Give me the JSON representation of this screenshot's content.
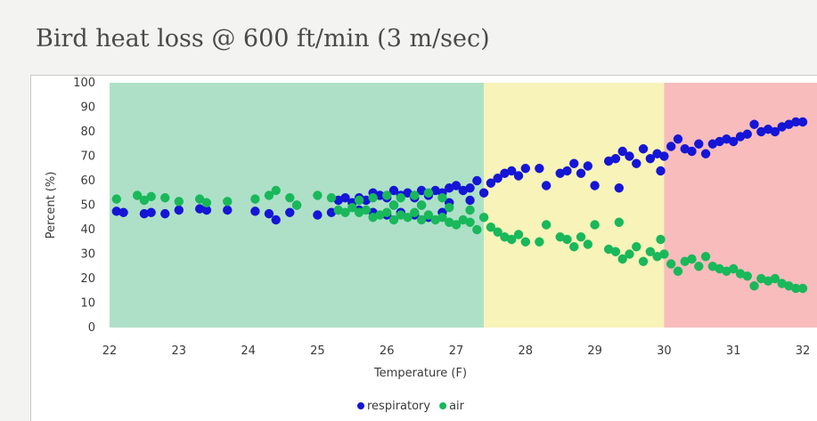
{
  "page": {
    "title": "Bird heat loss @ 600 ft/min (3 m/sec)"
  },
  "chart_data": {
    "type": "scatter",
    "title": "Bird heat loss @ 600 ft/min (3 m/sec)",
    "xlabel": "Temperature (F)",
    "ylabel": "Percent (%)",
    "xlim": [
      22,
      32
    ],
    "ylim": [
      0,
      100
    ],
    "x_ticks": [
      22,
      23,
      24,
      25,
      26,
      27,
      28,
      29,
      30,
      31,
      32
    ],
    "y_ticks": [
      0,
      10,
      20,
      30,
      40,
      50,
      60,
      70,
      80,
      90,
      100
    ],
    "grid": false,
    "legend_position": "bottom-center",
    "zones": [
      {
        "from": 22,
        "to": 27.4,
        "color": "#aee0c8"
      },
      {
        "from": 27.4,
        "to": 30.0,
        "color": "#f8f3b9"
      },
      {
        "from": 30.0,
        "to": 32,
        "color": "#f8bcbc"
      }
    ],
    "series": [
      {
        "name": "respiratory",
        "color": "#1515d6",
        "points": [
          [
            22.1,
            47.5
          ],
          [
            22.2,
            47
          ],
          [
            22.5,
            46.5
          ],
          [
            22.6,
            47
          ],
          [
            22.8,
            46.5
          ],
          [
            23.0,
            48
          ],
          [
            23.3,
            48.5
          ],
          [
            23.4,
            48
          ],
          [
            23.7,
            48
          ],
          [
            24.1,
            47.5
          ],
          [
            24.3,
            46.5
          ],
          [
            24.4,
            44
          ],
          [
            24.6,
            47
          ],
          [
            24.7,
            50
          ],
          [
            25.0,
            46
          ],
          [
            25.2,
            47
          ],
          [
            25.3,
            52
          ],
          [
            25.4,
            53
          ],
          [
            25.5,
            51
          ],
          [
            25.6,
            53
          ],
          [
            25.7,
            52
          ],
          [
            25.8,
            55
          ],
          [
            25.9,
            54
          ],
          [
            26.0,
            53
          ],
          [
            26.1,
            56
          ],
          [
            26.2,
            54
          ],
          [
            26.3,
            55
          ],
          [
            26.4,
            53
          ],
          [
            26.5,
            56
          ],
          [
            26.6,
            54
          ],
          [
            26.7,
            56
          ],
          [
            26.8,
            55
          ],
          [
            26.9,
            57
          ],
          [
            27.0,
            58
          ],
          [
            27.1,
            56
          ],
          [
            27.2,
            57
          ],
          [
            27.3,
            60
          ],
          [
            27.4,
            55
          ],
          [
            27.5,
            59
          ],
          [
            27.6,
            61
          ],
          [
            25.6,
            48
          ],
          [
            25.8,
            47
          ],
          [
            26.0,
            46
          ],
          [
            26.2,
            47
          ],
          [
            26.4,
            46
          ],
          [
            26.6,
            45
          ],
          [
            26.8,
            47
          ],
          [
            26.1,
            50
          ],
          [
            26.5,
            50
          ],
          [
            26.9,
            51
          ],
          [
            27.2,
            52
          ],
          [
            27.7,
            63
          ],
          [
            27.8,
            64
          ],
          [
            27.9,
            62
          ],
          [
            28.0,
            65
          ],
          [
            28.2,
            65
          ],
          [
            28.3,
            58
          ],
          [
            28.5,
            63
          ],
          [
            28.6,
            64
          ],
          [
            28.7,
            67
          ],
          [
            28.8,
            63
          ],
          [
            28.9,
            66
          ],
          [
            29.0,
            58
          ],
          [
            29.2,
            68
          ],
          [
            29.3,
            69
          ],
          [
            29.35,
            57
          ],
          [
            29.4,
            72
          ],
          [
            29.5,
            70
          ],
          [
            29.6,
            67
          ],
          [
            29.7,
            73
          ],
          [
            29.8,
            69
          ],
          [
            29.9,
            71
          ],
          [
            29.95,
            64
          ],
          [
            30.0,
            70
          ],
          [
            30.1,
            74
          ],
          [
            30.2,
            77
          ],
          [
            30.3,
            73
          ],
          [
            30.4,
            72
          ],
          [
            30.5,
            75
          ],
          [
            30.6,
            71
          ],
          [
            30.7,
            75
          ],
          [
            30.8,
            76
          ],
          [
            30.9,
            77
          ],
          [
            31.0,
            76
          ],
          [
            31.1,
            78
          ],
          [
            31.2,
            79
          ],
          [
            31.3,
            83
          ],
          [
            31.4,
            80
          ],
          [
            31.5,
            81
          ],
          [
            31.6,
            80
          ],
          [
            31.7,
            82
          ],
          [
            31.8,
            83
          ],
          [
            31.9,
            84
          ],
          [
            32.0,
            84
          ]
        ]
      },
      {
        "name": "air",
        "color": "#19b85a",
        "points": [
          [
            22.1,
            52.5
          ],
          [
            22.4,
            54
          ],
          [
            22.5,
            52
          ],
          [
            22.6,
            53.5
          ],
          [
            22.8,
            53
          ],
          [
            23.0,
            51.5
          ],
          [
            23.3,
            52.5
          ],
          [
            23.4,
            51
          ],
          [
            23.7,
            51.5
          ],
          [
            24.1,
            52.5
          ],
          [
            24.3,
            54
          ],
          [
            24.4,
            56
          ],
          [
            24.6,
            53
          ],
          [
            24.7,
            50
          ],
          [
            25.0,
            54
          ],
          [
            25.2,
            53
          ],
          [
            25.3,
            48
          ],
          [
            25.4,
            47
          ],
          [
            25.5,
            49
          ],
          [
            25.6,
            47
          ],
          [
            25.7,
            48
          ],
          [
            25.8,
            45
          ],
          [
            25.9,
            46
          ],
          [
            26.0,
            47
          ],
          [
            26.1,
            44
          ],
          [
            26.2,
            46
          ],
          [
            26.3,
            45
          ],
          [
            26.4,
            47
          ],
          [
            26.5,
            44
          ],
          [
            26.6,
            46
          ],
          [
            26.7,
            44
          ],
          [
            26.8,
            45
          ],
          [
            26.9,
            43
          ],
          [
            27.0,
            42
          ],
          [
            27.1,
            44
          ],
          [
            27.2,
            43
          ],
          [
            27.3,
            40
          ],
          [
            27.4,
            45
          ],
          [
            27.5,
            41
          ],
          [
            27.6,
            39
          ],
          [
            25.6,
            52
          ],
          [
            25.8,
            53
          ],
          [
            26.0,
            54
          ],
          [
            26.2,
            53
          ],
          [
            26.4,
            54
          ],
          [
            26.6,
            55
          ],
          [
            26.8,
            53
          ],
          [
            26.1,
            50
          ],
          [
            26.5,
            50
          ],
          [
            26.9,
            49
          ],
          [
            27.2,
            48
          ],
          [
            27.7,
            37
          ],
          [
            27.8,
            36
          ],
          [
            27.9,
            38
          ],
          [
            28.0,
            35
          ],
          [
            28.2,
            35
          ],
          [
            28.3,
            42
          ],
          [
            28.5,
            37
          ],
          [
            28.6,
            36
          ],
          [
            28.7,
            33
          ],
          [
            28.8,
            37
          ],
          [
            28.9,
            34
          ],
          [
            29.0,
            42
          ],
          [
            29.2,
            32
          ],
          [
            29.3,
            31
          ],
          [
            29.35,
            43
          ],
          [
            29.4,
            28
          ],
          [
            29.5,
            30
          ],
          [
            29.6,
            33
          ],
          [
            29.7,
            27
          ],
          [
            29.8,
            31
          ],
          [
            29.9,
            29
          ],
          [
            29.95,
            36
          ],
          [
            30.0,
            30
          ],
          [
            30.1,
            26
          ],
          [
            30.2,
            23
          ],
          [
            30.3,
            27
          ],
          [
            30.4,
            28
          ],
          [
            30.5,
            25
          ],
          [
            30.6,
            29
          ],
          [
            30.7,
            25
          ],
          [
            30.8,
            24
          ],
          [
            30.9,
            23
          ],
          [
            31.0,
            24
          ],
          [
            31.1,
            22
          ],
          [
            31.2,
            21
          ],
          [
            31.3,
            17
          ],
          [
            31.4,
            20
          ],
          [
            31.5,
            19
          ],
          [
            31.6,
            20
          ],
          [
            31.7,
            18
          ],
          [
            31.8,
            17
          ],
          [
            31.9,
            16
          ],
          [
            32.0,
            16
          ]
        ]
      }
    ]
  }
}
